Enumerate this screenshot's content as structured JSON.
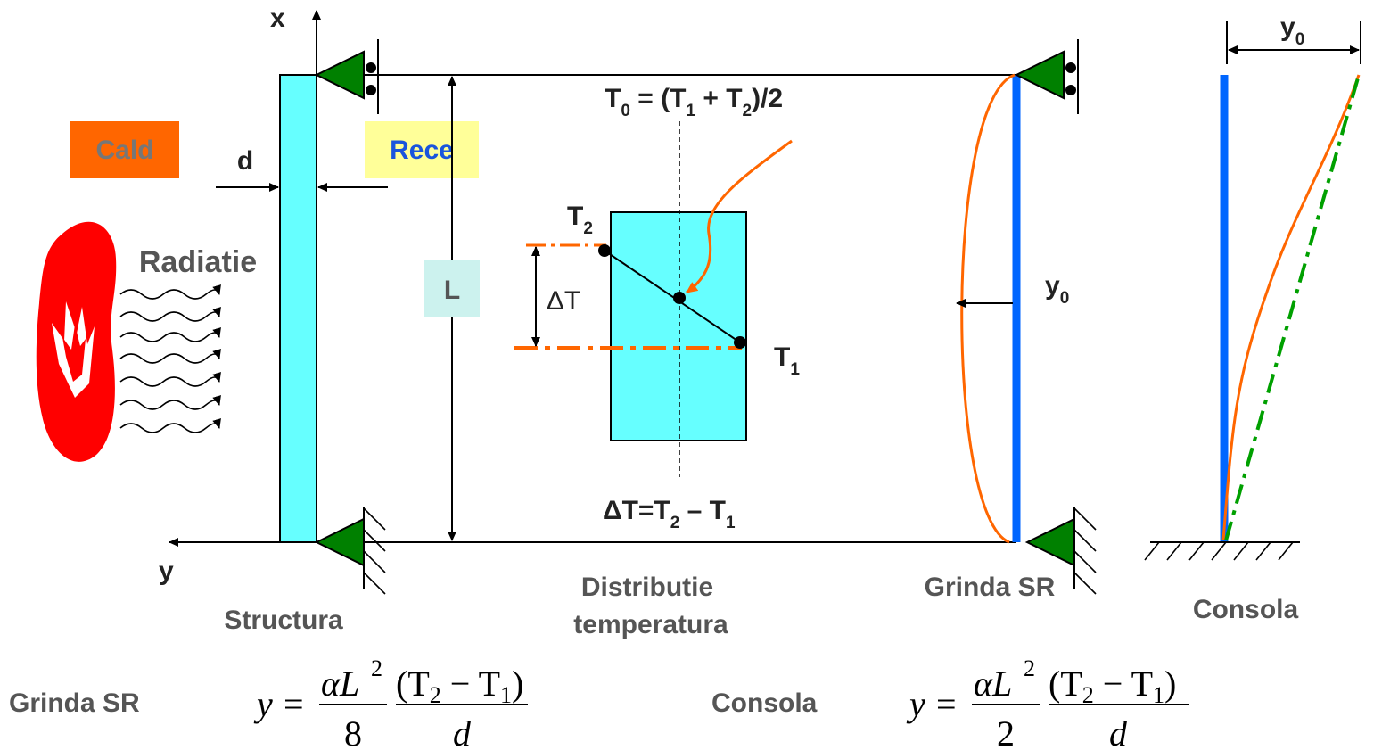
{
  "axes": {
    "x_label": "x",
    "y_label": "y"
  },
  "left_panel": {
    "hot_label": "Cald",
    "cold_label": "Rece",
    "thickness_label": "d",
    "radiation_label": "Radiatie",
    "length_label": "L",
    "caption": "Structura"
  },
  "middle_panel": {
    "t0_formula": "T",
    "t0_sub": "0",
    "t0_rest_a": " = (T",
    "t0_sub1": "1",
    "t0_rest_b": " + T",
    "t0_sub2": "2",
    "t0_rest_c": ")/2",
    "t2_label": "T",
    "t2_sub": "2",
    "t1_label": "T",
    "t1_sub": "1",
    "delta_label": "ΔT",
    "delta_formula_a": "ΔT=T",
    "delta_formula_sub2": "2",
    "delta_formula_b": " – T",
    "delta_formula_sub1": "1",
    "caption_line1": "Distributie",
    "caption_line2": "temperatura"
  },
  "beam_panel": {
    "deflection_label": "y",
    "deflection_sub": "0",
    "caption": "Grinda SR"
  },
  "cantilever_panel": {
    "deflection_label": "y",
    "deflection_sub": "0",
    "caption": "Consola"
  },
  "formulas": {
    "beam_name": "Grinda SR",
    "beam_lhs": "y",
    "beam_num_a": "αL",
    "beam_num_exp": "2",
    "beam_den": "8",
    "cant_name": "Consola",
    "cant_lhs": "y",
    "cant_num_a": "αL",
    "cant_num_exp": "2",
    "cant_den": "2",
    "frac_num": "(T",
    "frac_num_sub2": "2",
    "frac_num_mid": " − T",
    "frac_num_sub1": "1",
    "frac_num_end": ")",
    "frac_den": "d",
    "equals": "="
  },
  "colors": {
    "member_fill": "#66ffff",
    "support_green": "#008000",
    "accent_orange": "#ff6600",
    "cald_bg": "#ff6600",
    "rece_bg": "#ffff99",
    "l_bg": "#ccf2ee",
    "beam_blue": "#0066ff",
    "flame_red": "#ff0000",
    "chord_green": "#00a000"
  }
}
